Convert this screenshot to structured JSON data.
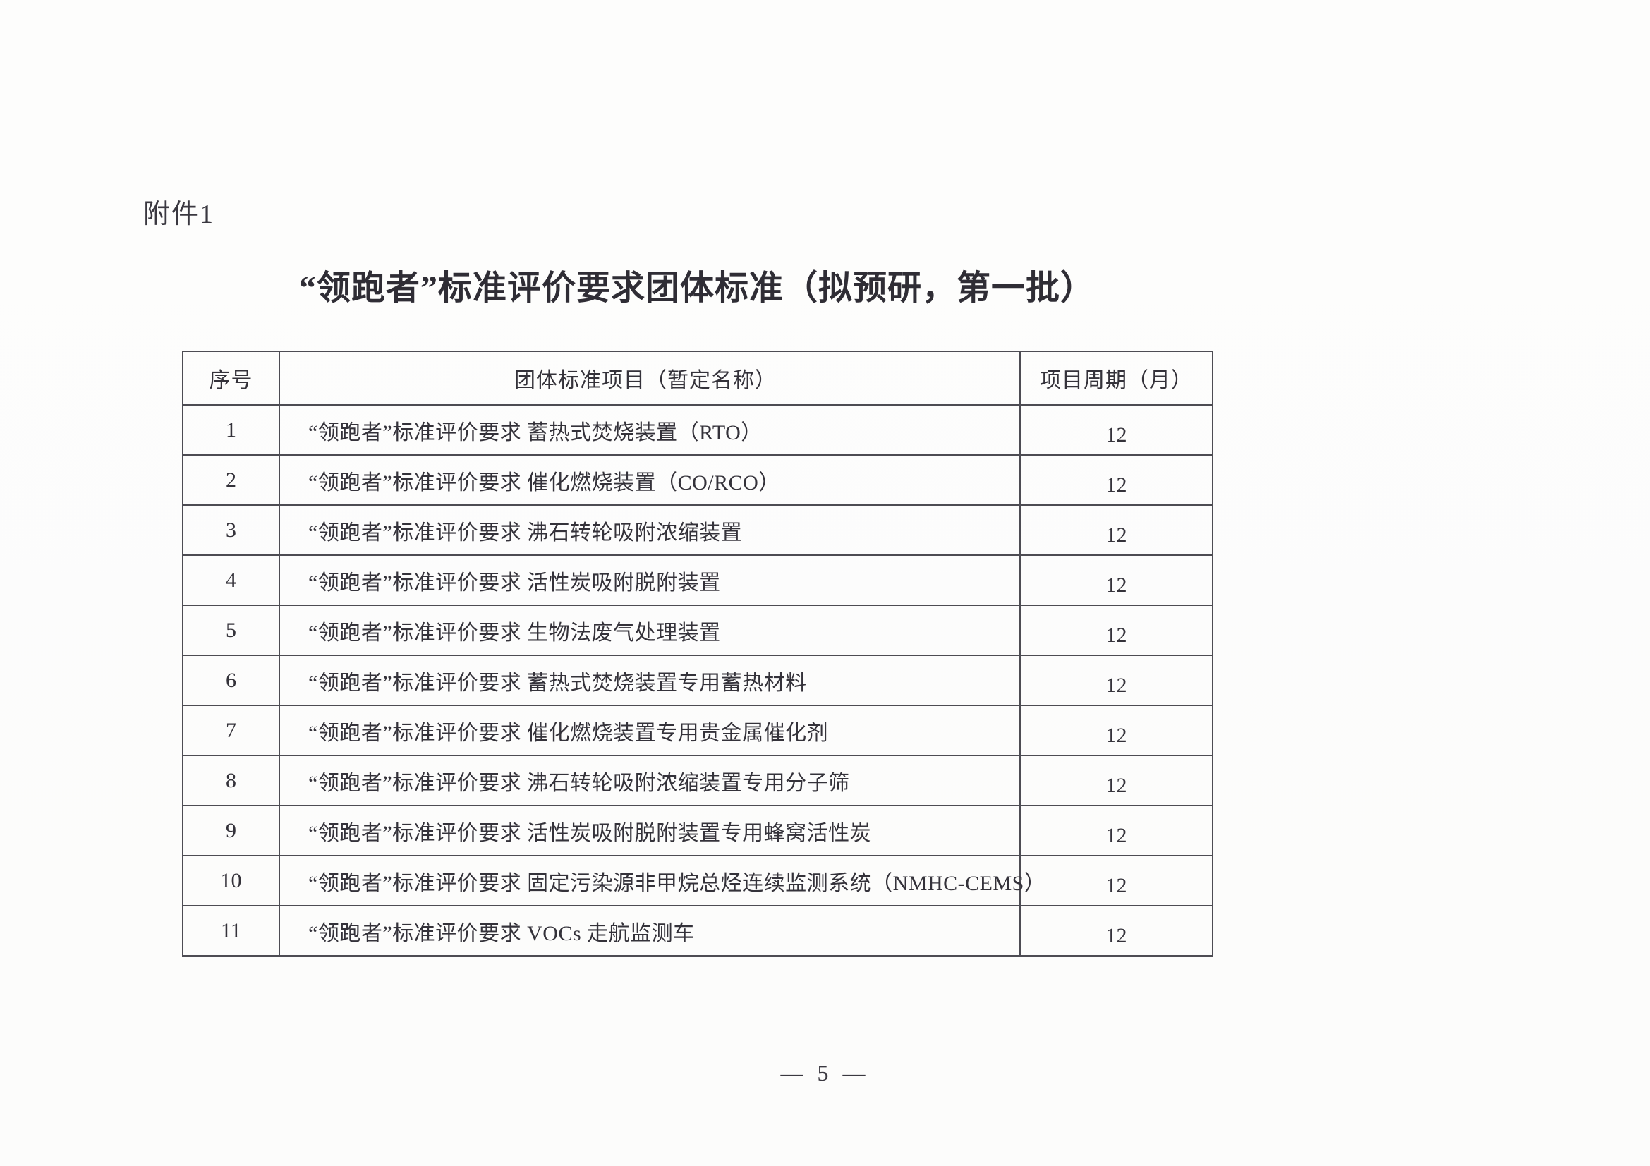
{
  "document": {
    "attachment_label": "附件1",
    "title": "“领跑者”标准评价要求团体标准（拟预研，第一批）",
    "footer_page": "— 5 —"
  },
  "table": {
    "headers": {
      "index": "序号",
      "name": "团体标准项目（暂定名称）",
      "period": "项目周期（月）"
    },
    "rows": [
      {
        "index": "1",
        "name": "“领跑者”标准评价要求 蓄热式焚烧装置（RTO）",
        "period": "12"
      },
      {
        "index": "2",
        "name": "“领跑者”标准评价要求 催化燃烧装置（CO/RCO）",
        "period": "12"
      },
      {
        "index": "3",
        "name": "“领跑者”标准评价要求 沸石转轮吸附浓缩装置",
        "period": "12"
      },
      {
        "index": "4",
        "name": "“领跑者”标准评价要求 活性炭吸附脱附装置",
        "period": "12"
      },
      {
        "index": "5",
        "name": "“领跑者”标准评价要求 生物法废气处理装置",
        "period": "12"
      },
      {
        "index": "6",
        "name": "“领跑者”标准评价要求 蓄热式焚烧装置专用蓄热材料",
        "period": "12"
      },
      {
        "index": "7",
        "name": "“领跑者”标准评价要求 催化燃烧装置专用贵金属催化剂",
        "period": "12"
      },
      {
        "index": "8",
        "name": "“领跑者”标准评价要求 沸石转轮吸附浓缩装置专用分子筛",
        "period": "12"
      },
      {
        "index": "9",
        "name": "“领跑者”标准评价要求 活性炭吸附脱附装置专用蜂窝活性炭",
        "period": "12"
      },
      {
        "index": "10",
        "name": "“领跑者”标准评价要求 固定污染源非甲烷总烃连续监测系统（NMHC-CEMS）",
        "period": "12"
      },
      {
        "index": "11",
        "name": "“领跑者”标准评价要求 VOCs 走航监测车",
        "period": "12"
      }
    ]
  }
}
